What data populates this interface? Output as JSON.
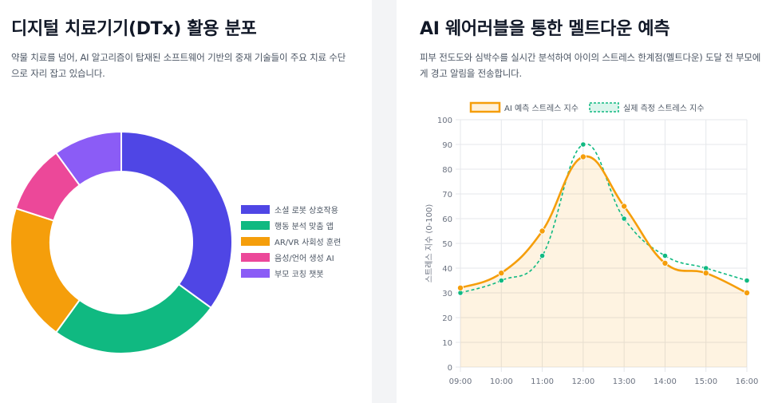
{
  "left_panel": {
    "title": "디지털 치료기기(DTx) 활용 분포",
    "description": "약물 치료를 넘어, AI 알고리즘이 탑재된 소프트웨어 기반의 중재 기술들이 주요 치료 수단으로 자리 잡고 있습니다."
  },
  "right_panel": {
    "title": "AI 웨어러블을 통한 멜트다운 예측",
    "description": "피부 전도도와 심박수를 실시간 분석하여 아이의 스트레스 한계점(멜트다운) 도달 전 부모에게 경고 알림을 전송합니다."
  },
  "colors": {
    "donut": [
      "#4f46e5",
      "#10b981",
      "#f59e0b",
      "#ec4899",
      "#8b5cf6"
    ],
    "predicted": "#f59e0b",
    "predicted_fill": "rgba(245,158,11,0.12)",
    "actual": "#10b981",
    "grid": "#e5e7eb",
    "axis_text": "#6b7280"
  },
  "chart_data": [
    {
      "type": "doughnut",
      "labels": [
        "소셜 로봇 상호작용",
        "행동 분석 맞춤 앱",
        "AR/VR 사회성 훈련",
        "음성/언어 생성 AI",
        "부모 코칭 챗봇"
      ],
      "values": [
        35,
        25,
        20,
        10,
        10
      ],
      "legend_position": "right"
    },
    {
      "type": "line",
      "x": [
        "09:00",
        "10:00",
        "11:00",
        "12:00",
        "13:00",
        "14:00",
        "15:00",
        "16:00"
      ],
      "series": [
        {
          "name": "AI 예측 스트레스 지수",
          "values": [
            32,
            38,
            55,
            85,
            65,
            42,
            38,
            30
          ],
          "style": "solid",
          "fill": true
        },
        {
          "name": "실제 측정 스트레스 지수",
          "values": [
            30,
            35,
            45,
            90,
            60,
            45,
            40,
            35
          ],
          "style": "dashed",
          "fill": false
        }
      ],
      "ylabel": "스트레스 지수 (0-100)",
      "ylim": [
        0,
        100
      ],
      "yticks": [
        0,
        10,
        20,
        30,
        40,
        50,
        60,
        70,
        80,
        90,
        100
      ],
      "grid": true,
      "legend_position": "top"
    }
  ]
}
